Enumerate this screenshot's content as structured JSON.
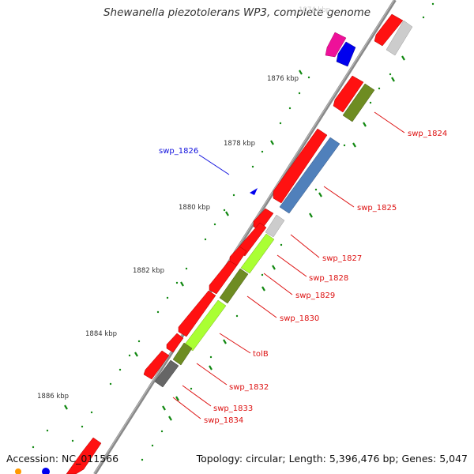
{
  "title": "Shewanella piezotolerans WP3, complete genome",
  "footer": {
    "accession": "Accession: NC_011566",
    "summary": "Topology: circular; Length: 5,396,476 bp; Genes: 5,047"
  },
  "colors": {
    "backbone": "#888888",
    "cds_red": "#ff1111",
    "cds_blue": "#5080bb",
    "cds_olive": "#6e8c22",
    "cds_lime": "#aaff33",
    "cds_gray": "#cccccc",
    "cds_darkgray": "#666666",
    "cds_pink": "#ee1199",
    "cds_navy": "#0000ee",
    "label_red": "#dd1111",
    "label_blue": "#1111dd",
    "tick_green": "#118811"
  },
  "kbp_labels": [
    "1874 kbp",
    "1876 kbp",
    "1878 kbp",
    "1880 kbp",
    "1882 kbp",
    "1884 kbp",
    "1886 kbp"
  ],
  "gene_labels": [
    {
      "text": "swp_1824",
      "color": "red"
    },
    {
      "text": "swp_1825",
      "color": "red"
    },
    {
      "text": "swp_1826",
      "color": "blue"
    },
    {
      "text": "swp_1827",
      "color": "red"
    },
    {
      "text": "swp_1828",
      "color": "red"
    },
    {
      "text": "swp_1829",
      "color": "red"
    },
    {
      "text": "swp_1830",
      "color": "red"
    },
    {
      "text": "tolB",
      "color": "red"
    },
    {
      "text": "swp_1832",
      "color": "red"
    },
    {
      "text": "swp_1833",
      "color": "red"
    },
    {
      "text": "swp_1834",
      "color": "red"
    }
  ]
}
